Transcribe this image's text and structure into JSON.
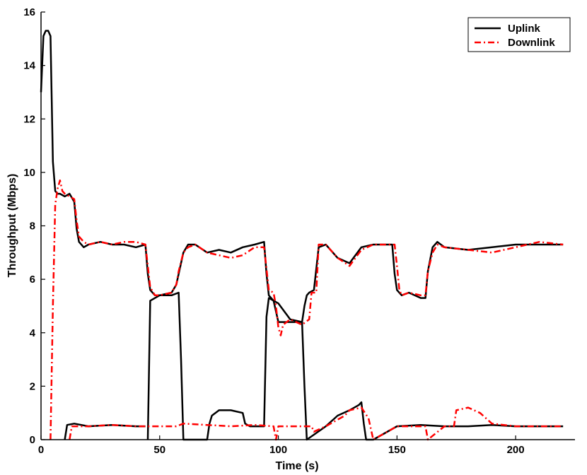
{
  "chart_data": {
    "type": "line",
    "title": "",
    "xlabel": "Time (s)",
    "ylabel": "Throughput (Mbps)",
    "xlim": [
      0,
      225
    ],
    "ylim": [
      0,
      16
    ],
    "xticks": [
      0,
      50,
      100,
      150,
      200
    ],
    "yticks": [
      0,
      2,
      4,
      6,
      8,
      10,
      12,
      14,
      16
    ],
    "grid": false,
    "legend_position": "top-right",
    "legend": [
      "Uplink",
      "Downlink"
    ],
    "series": [
      {
        "name": "Uplink",
        "color": "#000000",
        "style": "solid",
        "x": [
          0,
          1,
          2,
          3,
          4,
          5,
          6,
          7,
          8,
          10,
          12,
          14,
          15,
          16,
          18,
          20,
          25,
          30,
          35,
          40,
          44,
          45,
          46,
          48,
          50,
          55,
          57,
          58,
          60,
          62,
          65,
          70,
          75,
          80,
          85,
          90,
          94,
          95,
          96,
          98,
          100,
          105,
          110,
          111,
          112,
          113,
          115,
          117,
          120,
          125,
          130,
          135,
          140,
          145,
          148,
          149,
          150,
          152,
          155,
          160,
          162,
          163,
          165,
          167,
          170,
          180,
          190,
          200,
          210,
          220
        ],
        "y": [
          13.0,
          15.1,
          15.3,
          15.3,
          15.1,
          10.4,
          9.3,
          9.2,
          9.2,
          9.1,
          9.2,
          8.9,
          7.9,
          7.4,
          7.2,
          7.3,
          7.4,
          7.3,
          7.3,
          7.2,
          7.3,
          6.2,
          5.6,
          5.4,
          5.4,
          5.5,
          5.8,
          6.2,
          7.0,
          7.3,
          7.3,
          7.0,
          7.1,
          7.0,
          7.2,
          7.3,
          7.4,
          6.2,
          5.4,
          5.2,
          4.4,
          4.4,
          4.4,
          5.0,
          5.4,
          5.5,
          5.6,
          7.2,
          7.3,
          6.8,
          6.6,
          7.2,
          7.3,
          7.3,
          7.3,
          6.2,
          5.6,
          5.4,
          5.5,
          5.3,
          5.3,
          6.3,
          7.2,
          7.4,
          7.2,
          7.1,
          7.2,
          7.3,
          7.3,
          7.3
        ]
      },
      {
        "name": "",
        "color": "#000000",
        "style": "solid",
        "x": [
          10,
          11,
          14,
          20,
          30,
          40,
          44
        ],
        "y": [
          0.0,
          0.55,
          0.6,
          0.5,
          0.55,
          0.5,
          0.5
        ]
      },
      {
        "name": "",
        "color": "#000000",
        "style": "solid",
        "x": [
          45,
          46,
          50,
          55,
          58,
          59,
          60,
          70,
          71,
          72,
          75,
          80,
          85,
          86,
          88,
          90,
          94,
          95,
          96,
          100,
          105,
          110,
          111,
          112,
          120,
          125,
          130,
          134,
          135,
          136,
          137,
          140,
          150,
          160,
          170,
          180,
          190,
          200,
          210,
          220
        ],
        "y": [
          0.0,
          5.2,
          5.4,
          5.4,
          5.5,
          3.0,
          0.0,
          0.0,
          0.6,
          0.9,
          1.1,
          1.1,
          1.0,
          0.6,
          0.5,
          0.5,
          0.5,
          4.6,
          5.3,
          5.1,
          4.5,
          4.4,
          2.0,
          0.0,
          0.5,
          0.9,
          1.1,
          1.3,
          1.4,
          0.6,
          0.0,
          0.0,
          0.5,
          0.55,
          0.5,
          0.5,
          0.55,
          0.5,
          0.5,
          0.5
        ]
      },
      {
        "name": "Downlink",
        "color": "#ff0000",
        "style": "dashdot",
        "x": [
          4,
          5,
          6,
          7,
          8,
          9,
          10,
          12,
          14,
          15,
          16,
          18,
          20,
          25,
          30,
          35,
          40,
          44,
          45,
          46,
          48,
          50,
          55,
          57,
          58,
          60,
          62,
          65,
          70,
          75,
          80,
          85,
          90,
          94,
          95,
          96,
          98,
          99,
          100,
          101,
          102,
          105,
          110,
          113,
          114,
          115,
          116,
          117,
          120,
          125,
          130,
          135,
          140,
          145,
          149,
          150,
          151,
          152,
          155,
          160,
          162,
          163,
          165,
          167,
          170,
          180,
          190,
          200,
          210,
          220
        ],
        "y": [
          0.0,
          5.0,
          8.8,
          9.4,
          9.7,
          9.3,
          9.2,
          9.1,
          9.0,
          8.2,
          7.6,
          7.4,
          7.3,
          7.4,
          7.3,
          7.4,
          7.4,
          7.3,
          6.5,
          5.7,
          5.4,
          5.4,
          5.5,
          5.8,
          6.3,
          7.0,
          7.2,
          7.3,
          7.0,
          6.9,
          6.8,
          6.9,
          7.2,
          7.2,
          6.4,
          5.6,
          5.5,
          5.0,
          4.2,
          3.9,
          4.3,
          4.5,
          4.3,
          4.5,
          5.5,
          5.5,
          5.5,
          7.3,
          7.3,
          6.8,
          6.5,
          7.1,
          7.3,
          7.3,
          7.3,
          6.5,
          5.6,
          5.4,
          5.5,
          5.4,
          5.4,
          6.3,
          7.0,
          7.3,
          7.2,
          7.1,
          7.0,
          7.2,
          7.4,
          7.3
        ]
      },
      {
        "name": "",
        "color": "#ff0000",
        "style": "dashdot",
        "x": [
          12,
          13,
          15,
          20,
          30,
          40,
          46,
          50,
          57,
          60,
          70,
          80,
          90,
          98,
          99,
          100,
          110,
          114,
          115,
          120,
          128,
          130,
          135,
          138,
          140,
          150,
          160,
          162,
          163,
          170,
          174,
          175,
          180,
          185,
          190,
          200,
          210,
          220
        ],
        "y": [
          0.0,
          0.5,
          0.5,
          0.5,
          0.55,
          0.5,
          0.5,
          0.5,
          0.5,
          0.6,
          0.55,
          0.5,
          0.55,
          0.5,
          0.0,
          0.5,
          0.5,
          0.5,
          0.3,
          0.5,
          0.9,
          1.1,
          1.2,
          0.8,
          0.0,
          0.5,
          0.5,
          0.5,
          0.0,
          0.5,
          0.5,
          1.1,
          1.2,
          1.0,
          0.6,
          0.5,
          0.5,
          0.5
        ]
      }
    ]
  }
}
